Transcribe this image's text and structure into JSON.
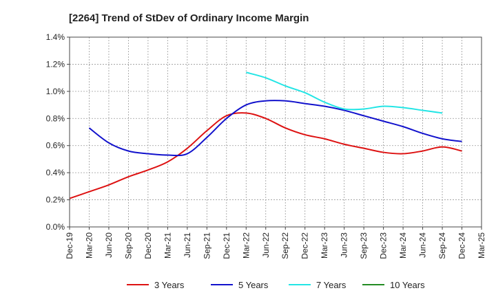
{
  "chart_data": {
    "type": "line",
    "title": "[2264]  Trend of StDev of Ordinary Income Margin",
    "xlabel": "",
    "ylabel": "",
    "x_ticks": [
      "Dec-19",
      "Mar-20",
      "Jun-20",
      "Sep-20",
      "Dec-20",
      "Mar-21",
      "Jun-21",
      "Sep-21",
      "Dec-21",
      "Mar-22",
      "Jun-22",
      "Sep-22",
      "Dec-22",
      "Mar-23",
      "Jun-23",
      "Sep-23",
      "Dec-23",
      "Mar-24",
      "Jun-24",
      "Sep-24",
      "Dec-24",
      "Mar-25"
    ],
    "y_ticks": [
      "0.0%",
      "0.2%",
      "0.4%",
      "0.6%",
      "0.8%",
      "1.0%",
      "1.2%",
      "1.4%"
    ],
    "ylim": [
      0,
      1.4
    ],
    "y_unit": "%",
    "grid": true,
    "legend_position": "bottom",
    "series": [
      {
        "name": "3 Years",
        "color": "#dd1111",
        "start_index": 0,
        "values": [
          0.21,
          0.26,
          0.31,
          0.37,
          0.42,
          0.48,
          0.58,
          0.71,
          0.82,
          0.84,
          0.8,
          0.73,
          0.68,
          0.65,
          0.61,
          0.58,
          0.55,
          0.54,
          0.56,
          0.59,
          0.56
        ]
      },
      {
        "name": "5 Years",
        "color": "#1111cc",
        "start_index": 1,
        "values": [
          0.73,
          0.62,
          0.56,
          0.54,
          0.53,
          0.54,
          0.66,
          0.8,
          0.9,
          0.93,
          0.93,
          0.91,
          0.89,
          0.86,
          0.82,
          0.78,
          0.74,
          0.69,
          0.65,
          0.63
        ]
      },
      {
        "name": "7 Years",
        "color": "#22e5e5",
        "start_index": 9,
        "values": [
          1.14,
          1.1,
          1.04,
          0.99,
          0.92,
          0.87,
          0.87,
          0.89,
          0.88,
          0.86,
          0.84
        ]
      },
      {
        "name": "10 Years",
        "color": "#228b22",
        "start_index": 0,
        "values": []
      }
    ]
  }
}
